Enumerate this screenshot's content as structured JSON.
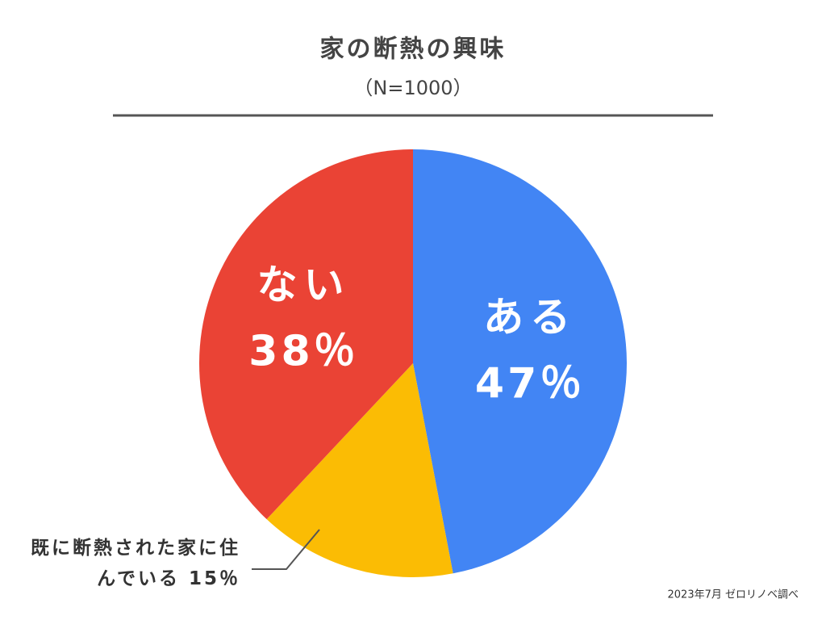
{
  "chart_data": {
    "type": "pie",
    "title": "家の断熱の興味",
    "subtitle": "（N=1000）",
    "categories": [
      "ある",
      "既に断熱された家に住んでいる",
      "ない"
    ],
    "values": [
      47,
      15,
      38
    ],
    "value_labels": [
      "47％",
      "15％",
      "38％"
    ],
    "colors": [
      "#4285f4",
      "#fbbc04",
      "#ea4335"
    ],
    "source": "2023年7月 ゼロリノベ調べ"
  }
}
